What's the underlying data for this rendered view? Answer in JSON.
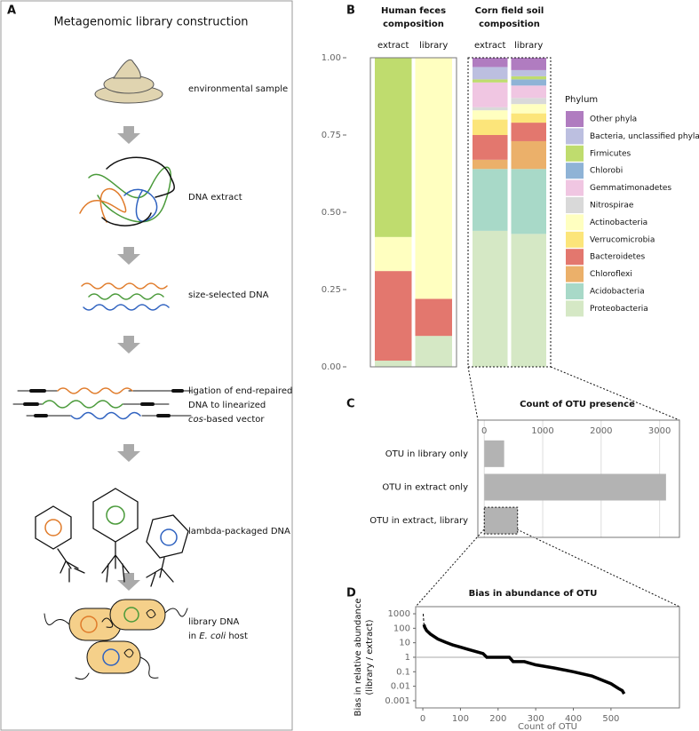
{
  "panel_a": {
    "letter": "A",
    "title": "Metagenomic library construction",
    "steps": [
      {
        "lines": [
          [
            "environmental sample"
          ]
        ]
      },
      {
        "lines": [
          [
            "DNA extract"
          ]
        ]
      },
      {
        "lines": [
          [
            "size-selected DNA"
          ]
        ]
      },
      {
        "lines": [
          [
            "ligation of end-repaired"
          ],
          [
            "DNA to linearized"
          ],
          [
            {
              "text": "cos",
              "italic": true
            },
            "-based vector"
          ]
        ]
      },
      {
        "lines": [
          [
            "lambda-packaged DNA"
          ]
        ]
      },
      {
        "lines": [
          [
            "library DNA"
          ],
          [
            "in ",
            {
              "text": "E. coli",
              "italic": true
            },
            " host"
          ]
        ]
      }
    ]
  },
  "chart_data": [
    {
      "type": "stacked_bar",
      "panel": "B",
      "facets": [
        {
          "title": [
            "Human feces",
            "composition"
          ],
          "categories": [
            "extract",
            "library"
          ]
        },
        {
          "title": [
            "Corn field soil",
            "composition"
          ],
          "categories": [
            "extract",
            "library"
          ]
        }
      ],
      "ylim": [
        0,
        1
      ],
      "yticks": [
        {
          "value": 0,
          "label": "0.00"
        },
        {
          "value": 0.25,
          "label": "0.25"
        },
        {
          "value": 0.5,
          "label": "0.50"
        },
        {
          "value": 0.75,
          "label": "0.75"
        },
        {
          "value": 1,
          "label": "1.00"
        }
      ],
      "legend_title": "Phylum",
      "series": [
        {
          "name": "Proteobacteria",
          "color": "#d5e8c5",
          "values": [
            0.02,
            0.1,
            0.44,
            0.43
          ]
        },
        {
          "name": "Acidobacteria",
          "color": "#a8d9c8",
          "values": [
            0,
            0,
            0.2,
            0.21
          ]
        },
        {
          "name": "Chloroflexi",
          "color": "#ebb06a",
          "values": [
            0,
            0,
            0.03,
            0.09
          ]
        },
        {
          "name": "Bacteroidetes",
          "color": "#e3776e",
          "values": [
            0.29,
            0.12,
            0.08,
            0.06
          ]
        },
        {
          "name": "Verrucomicrobia",
          "color": "#fce57a",
          "values": [
            0,
            0,
            0.05,
            0.03
          ]
        },
        {
          "name": "Actinobacteria",
          "color": "#ffffc0",
          "values": [
            0.11,
            0.78,
            0.03,
            0.03
          ]
        },
        {
          "name": "Nitrospirae",
          "color": "#d9d9d9",
          "values": [
            0,
            0,
            0.01,
            0.02
          ]
        },
        {
          "name": "Gemmatimonadetes",
          "color": "#f0c6e2",
          "values": [
            0,
            0,
            0.08,
            0.04
          ]
        },
        {
          "name": "Chlorobi",
          "color": "#8fb3d6",
          "values": [
            0,
            0,
            0,
            0.02
          ]
        },
        {
          "name": "Firmicutes",
          "color": "#bfdc6e",
          "values": [
            0.58,
            0,
            0.01,
            0.01
          ]
        },
        {
          "name": "Bacteria, unclassified phyla",
          "color": "#bcbfe0",
          "values": [
            0,
            0,
            0.04,
            0.02
          ]
        },
        {
          "name": "Other phyla",
          "color": "#b07cc0",
          "values": [
            0,
            0,
            0.03,
            0.04
          ]
        }
      ]
    },
    {
      "type": "hbar",
      "panel": "C",
      "title": "Count of OTU presence",
      "categories": [
        "OTU in library only",
        "OTU in extract only",
        "OTU in extract, library"
      ],
      "values": [
        340,
        3110,
        570
      ],
      "color": "#b3b3b3",
      "highlight_index": 2,
      "xlim": [
        -110,
        3340
      ],
      "xticks": [
        0,
        1000,
        2000,
        3000
      ],
      "grid": true
    },
    {
      "type": "line",
      "panel": "D",
      "title": "Bias in abundance of OTU",
      "xlabel": "Count of OTU",
      "ylabel": [
        "Bias in relative abundance",
        "(library / extract)"
      ],
      "log_y": true,
      "xlim": [
        -19,
        682
      ],
      "ylim": [
        0.00032,
        3100
      ],
      "xticks": [
        0,
        100,
        200,
        300,
        400,
        500
      ],
      "yticks": [
        0.001,
        0.01,
        0.1,
        1,
        10,
        100,
        1000
      ],
      "hline": 1,
      "series": [
        {
          "style": "dashed",
          "color": "#000000",
          "x": [
            1,
            3
          ],
          "values": [
            1000,
            180
          ]
        },
        {
          "style": "solid",
          "color": "#000000",
          "x": [
            3,
            5,
            10,
            20,
            40,
            60,
            80,
            100,
            120,
            140,
            160,
            170,
            200,
            230,
            240,
            270,
            300,
            350,
            400,
            450,
            500,
            520,
            530,
            535
          ],
          "values": [
            180,
            120,
            70,
            40,
            18,
            11,
            7,
            5,
            3.5,
            2.5,
            1.8,
            1,
            1,
            1,
            0.5,
            0.5,
            0.3,
            0.18,
            0.1,
            0.05,
            0.015,
            0.007,
            0.005,
            0.003
          ]
        }
      ]
    }
  ]
}
